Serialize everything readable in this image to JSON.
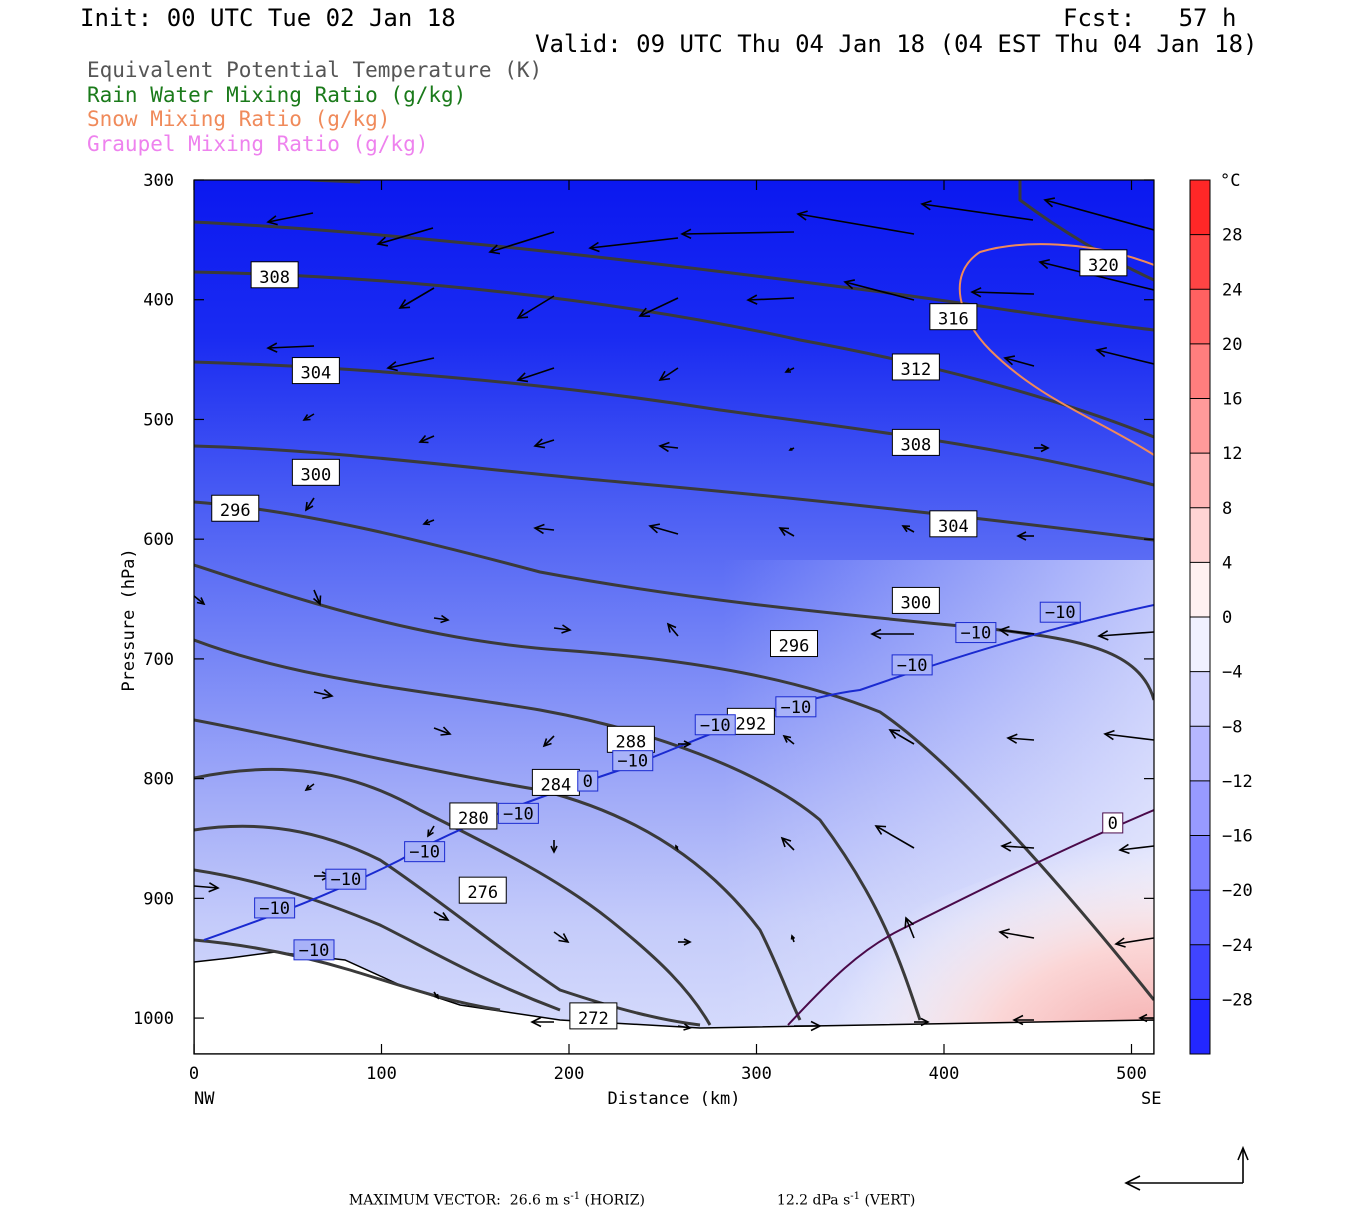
{
  "header": {
    "init": "Init: 00 UTC Tue 02 Jan 18",
    "fcst": "Fcst:   57 h",
    "valid": "Valid: 09 UTC Thu 04 Jan 18 (04 EST Thu 04 Jan 18)"
  },
  "legend": [
    {
      "label": "Equivalent Potential Temperature (K)",
      "color": "#555555"
    },
    {
      "label": "Rain Water Mixing Ratio (g/kg)",
      "color": "#1a7a1a"
    },
    {
      "label": "Snow Mixing Ratio (g/kg)",
      "color": "#f08a5a"
    },
    {
      "label": "Graupel Mixing Ratio (g/kg)",
      "color": "#ee82ee"
    }
  ],
  "footer": {
    "max_vector": "MAXIMUM VECTOR:  26.6 m s",
    "horiz": " (HORIZ)",
    "vert_val": "12.2 dPa s",
    "vert": " (VERT)",
    "exp": "-1"
  },
  "chart_data": {
    "type": "cross-section",
    "xlabel": "Distance (km)",
    "ylabel": "Pressure (hPa)",
    "xlim": [
      0,
      512
    ],
    "ylim": [
      1030,
      300
    ],
    "x_ticks": [
      "0",
      "100",
      "200",
      "300",
      "400",
      "500"
    ],
    "x_tick_values": [
      0,
      100,
      200,
      300,
      400,
      500
    ],
    "y_ticks": [
      "300",
      "400",
      "500",
      "600",
      "700",
      "800",
      "900",
      "1000"
    ],
    "y_tick_values": [
      300,
      400,
      500,
      600,
      700,
      800,
      900,
      1000
    ],
    "x_end_labels": {
      "left": "NW",
      "right": "SE"
    },
    "colorbar": {
      "unit": "°C",
      "tick_labels": [
        "28",
        "24",
        "20",
        "16",
        "12",
        "8",
        "4",
        "0",
        "−4",
        "−8",
        "−12",
        "−16",
        "−20",
        "−24",
        "−28"
      ],
      "tick_values": [
        28,
        24,
        20,
        16,
        12,
        8,
        4,
        0,
        -4,
        -8,
        -12,
        -16,
        -20,
        -24,
        -28
      ],
      "range": [
        -32,
        32
      ]
    },
    "theta_e_labels": [
      {
        "text": "308",
        "x": 43,
        "p": 380
      },
      {
        "text": "304",
        "x": 65,
        "p": 460
      },
      {
        "text": "300",
        "x": 65,
        "p": 545
      },
      {
        "text": "296",
        "x": 22,
        "p": 575
      },
      {
        "text": "316",
        "x": 405,
        "p": 415
      },
      {
        "text": "320",
        "x": 485,
        "p": 370
      },
      {
        "text": "312",
        "x": 385,
        "p": 457
      },
      {
        "text": "308",
        "x": 385,
        "p": 520
      },
      {
        "text": "304",
        "x": 405,
        "p": 588
      },
      {
        "text": "300",
        "x": 385,
        "p": 652
      },
      {
        "text": "296",
        "x": 320,
        "p": 688
      },
      {
        "text": "292",
        "x": 297,
        "p": 753
      },
      {
        "text": "288",
        "x": 233,
        "p": 768
      },
      {
        "text": "284",
        "x": 193,
        "p": 804
      },
      {
        "text": "280",
        "x": 149,
        "p": 832
      },
      {
        "text": "276",
        "x": 154,
        "p": 894
      },
      {
        "text": "272",
        "x": 213,
        "p": 999
      }
    ],
    "temperature_labels": [
      {
        "text": "−10",
        "x": 462,
        "p": 661
      },
      {
        "text": "−10",
        "x": 417,
        "p": 678
      },
      {
        "text": "−10",
        "x": 383,
        "p": 705
      },
      {
        "text": "−10",
        "x": 321,
        "p": 740
      },
      {
        "text": "−10",
        "x": 278,
        "p": 755
      },
      {
        "text": "−10",
        "x": 234,
        "p": 785
      },
      {
        "text": "0",
        "x": 210,
        "p": 802
      },
      {
        "text": "−10",
        "x": 173,
        "p": 829
      },
      {
        "text": "−10",
        "x": 123,
        "p": 861
      },
      {
        "text": "−10",
        "x": 81,
        "p": 884
      },
      {
        "text": "−10",
        "x": 43,
        "p": 908
      },
      {
        "text": "−10",
        "x": 64,
        "p": 943
      },
      {
        "text": "0",
        "x": 490,
        "p": 837
      }
    ]
  }
}
